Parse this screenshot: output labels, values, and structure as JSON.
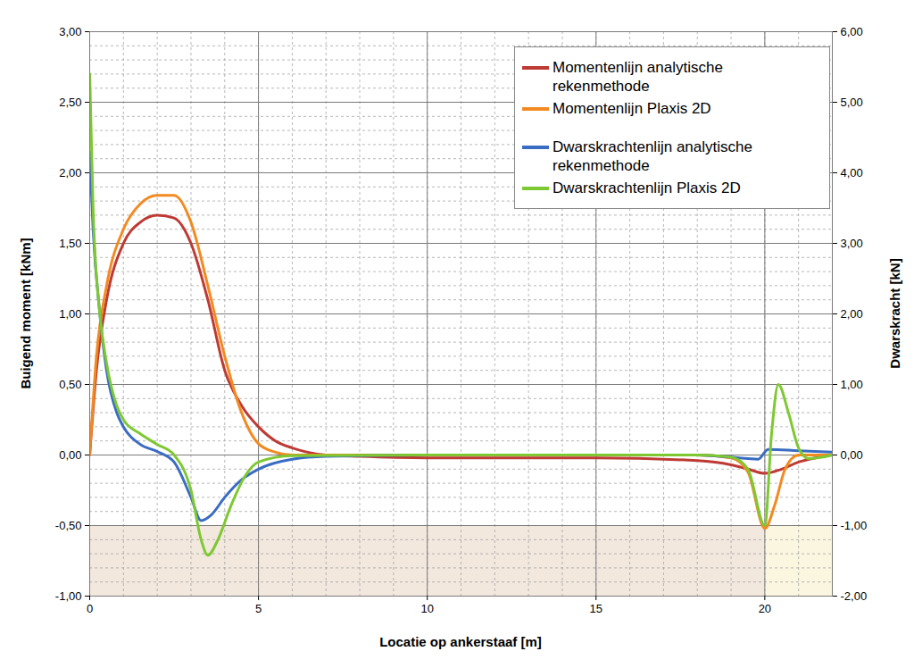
{
  "chart_data": {
    "type": "line",
    "xlabel": "Locatie op ankerstaaf [m]",
    "ylabel": "Buigend moment [kNm]",
    "y2label": "Dwarskracht [kN]",
    "xlim": [
      0,
      22
    ],
    "xticks": [
      0,
      5,
      10,
      15,
      20
    ],
    "ylim": [
      -1,
      3
    ],
    "yticks": [
      {
        "value": -1,
        "label": "-1,00"
      },
      {
        "value": -0.5,
        "label": "-0,50"
      },
      {
        "value": 0,
        "label": "0,00"
      },
      {
        "value": 0.5,
        "label": "0,50"
      },
      {
        "value": 1,
        "label": "1,00"
      },
      {
        "value": 1.5,
        "label": "1,50"
      },
      {
        "value": 2,
        "label": "2,00"
      },
      {
        "value": 2.5,
        "label": "2,50"
      },
      {
        "value": 3,
        "label": "3,00"
      }
    ],
    "y2lim": [
      -2,
      6
    ],
    "y2ticks": [
      {
        "value": -2,
        "label": "-2,00"
      },
      {
        "value": -1,
        "label": "-1,00"
      },
      {
        "value": 0,
        "label": "0,00"
      },
      {
        "value": 1,
        "label": "1,00"
      },
      {
        "value": 2,
        "label": "2,00"
      },
      {
        "value": 3,
        "label": "3,00"
      },
      {
        "value": 4,
        "label": "4,00"
      },
      {
        "value": 5,
        "label": "5,00"
      },
      {
        "value": 6,
        "label": "6,00"
      }
    ],
    "grid": true,
    "legend": "top-right",
    "bands": [
      {
        "x": [
          0,
          20
        ],
        "y": [
          -1,
          -0.5
        ],
        "color": "#f3e8de"
      },
      {
        "x": [
          20,
          22
        ],
        "y": [
          -1,
          -0.5
        ],
        "color": "#fbf6df"
      }
    ],
    "series": [
      {
        "name": "Momentenlijn  analytische rekenmethode",
        "color": "#be3a34",
        "x": [
          0,
          0.2,
          0.5,
          1.0,
          1.5,
          2.0,
          2.5,
          3.0,
          3.5,
          4.0,
          4.5,
          5.0,
          5.5,
          6,
          7,
          8,
          10,
          15,
          18,
          19,
          19.5,
          20,
          20.5,
          21,
          21.5,
          22
        ],
        "values": [
          0,
          0.6,
          1.1,
          1.5,
          1.65,
          1.7,
          1.68,
          1.5,
          1.1,
          0.6,
          0.35,
          0.2,
          0.1,
          0.05,
          0.0,
          -0.01,
          -0.02,
          -0.02,
          -0.04,
          -0.07,
          -0.1,
          -0.13,
          -0.1,
          -0.05,
          -0.02,
          0
        ]
      },
      {
        "name": "Momentenlijn  Plaxis 2D",
        "color": "#f28a22",
        "x": [
          0,
          0.2,
          0.5,
          1.0,
          1.5,
          2.0,
          2.5,
          3.0,
          3.5,
          4.0,
          4.5,
          5.0,
          5.5,
          6,
          10,
          18,
          19,
          19.5,
          20,
          20.3,
          20.6,
          21,
          22
        ],
        "values": [
          0,
          0.7,
          1.2,
          1.6,
          1.78,
          1.84,
          1.84,
          1.65,
          1.2,
          0.7,
          0.3,
          0.08,
          0.02,
          0,
          0,
          0,
          -0.02,
          -0.12,
          -0.52,
          -0.35,
          -0.1,
          0,
          0
        ]
      },
      {
        "name": "Dwarskrachtenlijn analytische rekenmethode",
        "color": "#3a6cc4",
        "axis": "y2",
        "x": [
          0,
          0.1,
          0.3,
          0.5,
          0.8,
          1.0,
          1.5,
          2.0,
          2.5,
          3.0,
          3.3,
          3.6,
          4.0,
          4.5,
          5,
          6,
          7,
          10,
          18,
          19,
          19.5,
          19.8,
          20.1,
          21,
          22
        ],
        "values": [
          4.3,
          3.2,
          2.0,
          1.2,
          0.6,
          0.4,
          0.15,
          0.05,
          -0.1,
          -0.6,
          -0.93,
          -0.85,
          -0.6,
          -0.35,
          -0.2,
          -0.06,
          -0.02,
          0,
          0,
          -0.03,
          -0.05,
          -0.06,
          0.08,
          0.06,
          0.04
        ]
      },
      {
        "name": "Dwarskrachtenlijn Plaxis 2D",
        "color": "#7ec832",
        "axis": "y2",
        "x": [
          0,
          0.1,
          0.3,
          0.5,
          0.8,
          1.0,
          1.5,
          2.0,
          2.5,
          3.0,
          3.3,
          3.5,
          3.8,
          4.2,
          4.6,
          5,
          6,
          10,
          18,
          19,
          19.5,
          20,
          20.2,
          20.4,
          20.7,
          21,
          21.3,
          22
        ],
        "values": [
          5.4,
          3.5,
          2.0,
          1.3,
          0.7,
          0.5,
          0.3,
          0.15,
          0.0,
          -0.5,
          -1.2,
          -1.42,
          -1.2,
          -0.7,
          -0.3,
          -0.1,
          -0.01,
          0,
          0,
          -0.03,
          -0.2,
          -1.0,
          0.3,
          1.0,
          0.6,
          0.1,
          -0.05,
          0
        ]
      }
    ]
  }
}
